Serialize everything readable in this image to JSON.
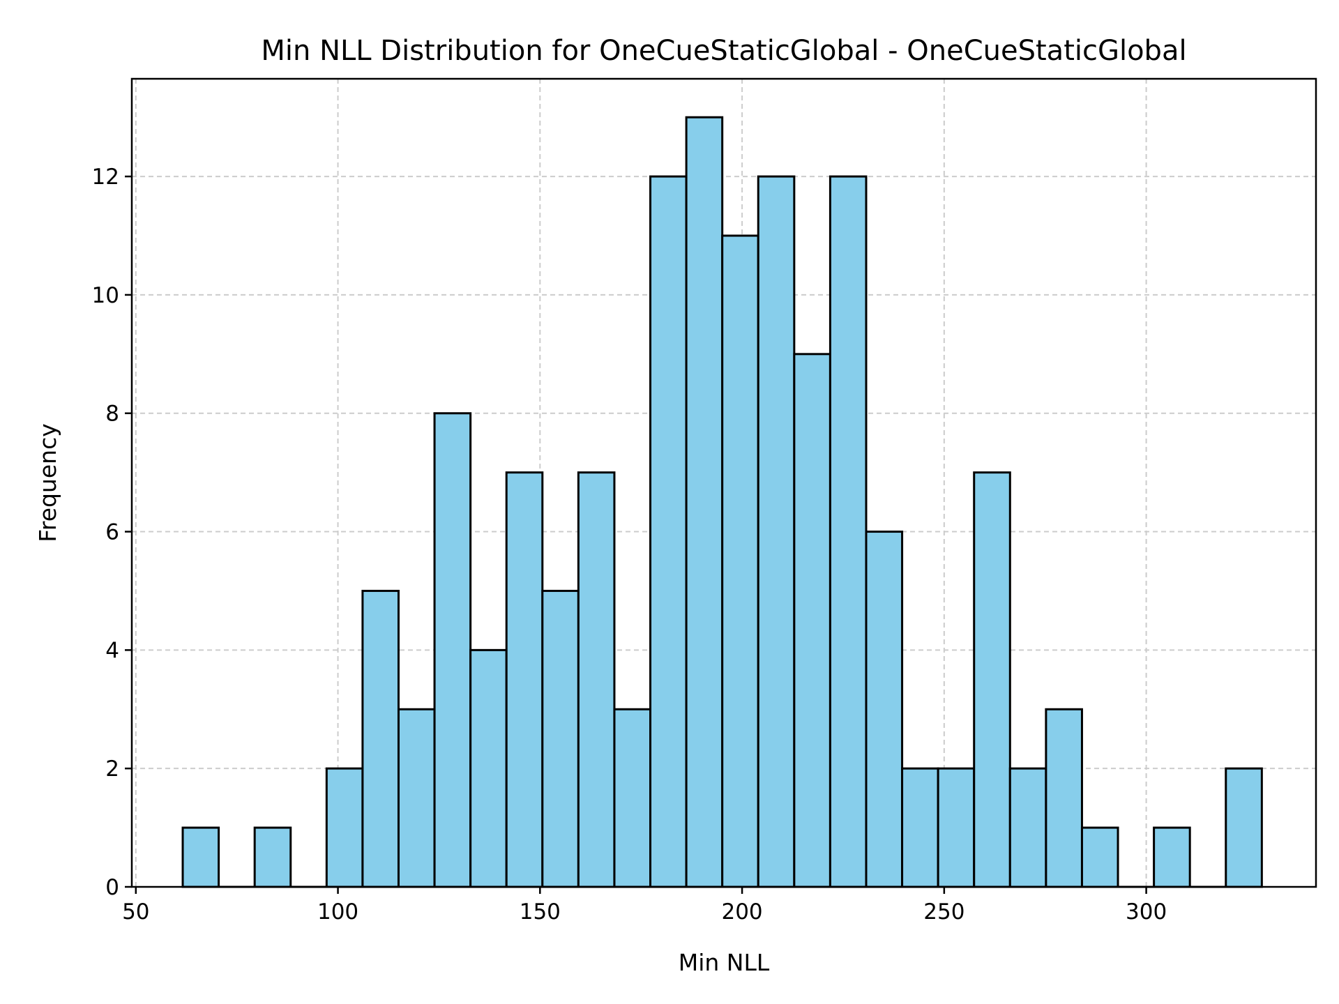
{
  "chart_data": {
    "type": "bar",
    "title": "Min NLL Distribution for OneCueStaticGlobal - OneCueStaticGlobal",
    "xlabel": "Min NLL",
    "ylabel": "Frequency",
    "xlim": [
      49,
      342
    ],
    "ylim": [
      0,
      13.65
    ],
    "xticks": [
      50,
      100,
      150,
      200,
      250,
      300
    ],
    "yticks": [
      0,
      2,
      4,
      6,
      8,
      10,
      12
    ],
    "grid": true,
    "bar_color": "#87CEEB",
    "edge_color": "#000000",
    "bin_edges": [
      61.6,
      70.5,
      79.4,
      88.3,
      97.2,
      106.1,
      115.0,
      123.9,
      132.8,
      141.7,
      150.6,
      159.5,
      168.4,
      177.3,
      186.2,
      195.1,
      204.0,
      212.9,
      221.8,
      230.7,
      239.6,
      248.5,
      257.4,
      266.3,
      275.2,
      284.1,
      293.0,
      301.9,
      310.8,
      319.7,
      328.6
    ],
    "counts": [
      1,
      0,
      1,
      0,
      2,
      5,
      3,
      8,
      4,
      7,
      5,
      7,
      3,
      12,
      13,
      11,
      12,
      9,
      12,
      6,
      2,
      2,
      7,
      2,
      3,
      1,
      0,
      1,
      0,
      2
    ]
  }
}
